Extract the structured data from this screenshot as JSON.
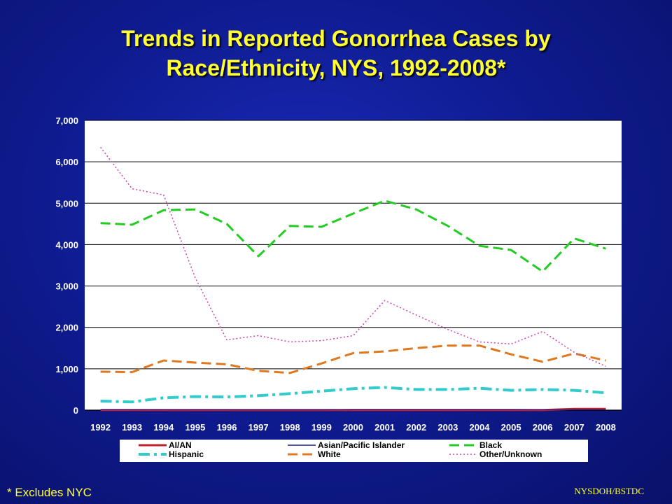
{
  "title_line1": "Trends in Reported Gonorrhea Cases by",
  "title_line2": "Race/Ethnicity, NYS, 1992-2008*",
  "footnote": "* Excludes NYC",
  "source": "NYSDOH/BSTDC",
  "chart_data": {
    "type": "line",
    "title": "Trends in Reported Gonorrhea Cases by Race/Ethnicity, NYS, 1992-2008*",
    "xlabel": "",
    "ylabel": "",
    "x": [
      "1992",
      "1993",
      "1994",
      "1995",
      "1996",
      "1997",
      "1998",
      "1999",
      "2000",
      "2001",
      "2002",
      "2003",
      "2004",
      "2005",
      "2006",
      "2007",
      "2008"
    ],
    "ylim": [
      0,
      7000
    ],
    "yticks": [
      0,
      1000,
      2000,
      3000,
      4000,
      5000,
      6000,
      7000
    ],
    "ytick_labels": [
      "0",
      "1,000",
      "2,000",
      "3,000",
      "4,000",
      "5,000",
      "6,000",
      "7,000"
    ],
    "grid": "horizontal",
    "legend_position": "bottom",
    "series": [
      {
        "name": "AI/AN",
        "color": "#c0202a",
        "dash": "solid",
        "width": 3,
        "values": [
          5,
          5,
          5,
          5,
          5,
          5,
          5,
          5,
          5,
          5,
          5,
          5,
          5,
          5,
          5,
          30,
          30
        ]
      },
      {
        "name": "Asian/Pacific Islander",
        "color": "#1a1a8c",
        "dash": "solid",
        "width": 1,
        "values": [
          10,
          10,
          10,
          10,
          10,
          10,
          10,
          10,
          20,
          20,
          20,
          20,
          20,
          20,
          15,
          15,
          15
        ]
      },
      {
        "name": "Black",
        "color": "#22cc22",
        "dash": "long",
        "width": 3,
        "values": [
          4520,
          4480,
          4830,
          4850,
          4500,
          3720,
          4450,
          4430,
          4750,
          5060,
          4850,
          4450,
          3970,
          3870,
          3350,
          4150,
          3900
        ]
      },
      {
        "name": "Hispanic",
        "color": "#33cccc",
        "dash": "dashdot",
        "width": 4,
        "values": [
          220,
          200,
          300,
          330,
          320,
          350,
          400,
          460,
          520,
          550,
          500,
          500,
          530,
          480,
          500,
          480,
          420
        ]
      },
      {
        "name": "White",
        "color": "#e07820",
        "dash": "long",
        "width": 3,
        "values": [
          930,
          920,
          1200,
          1150,
          1110,
          950,
          900,
          1130,
          1380,
          1420,
          1500,
          1560,
          1560,
          1350,
          1170,
          1370,
          1200
        ]
      },
      {
        "name": "Other/Unknown",
        "color": "#cc44aa",
        "dash": "dotted",
        "width": 1.5,
        "values": [
          6350,
          5350,
          5200,
          3200,
          1700,
          1800,
          1650,
          1680,
          1800,
          2650,
          2300,
          1950,
          1650,
          1600,
          1900,
          1400,
          1060
        ]
      }
    ]
  }
}
